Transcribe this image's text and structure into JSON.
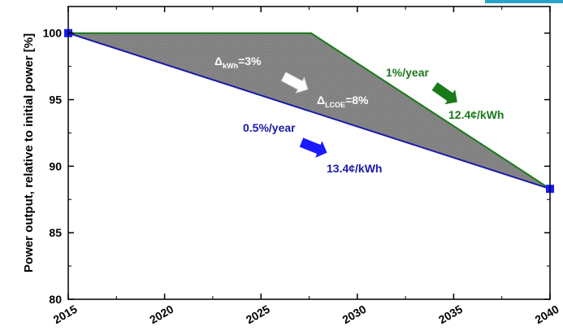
{
  "chart_data": {
    "type": "area",
    "xlabel": "",
    "ylabel": "Power output, relative to initial power [%]",
    "xlim": [
      2015,
      2040
    ],
    "ylim": [
      80,
      102
    ],
    "xticks": [
      2015,
      2020,
      2025,
      2030,
      2035,
      2040
    ],
    "yticks": [
      80,
      85,
      90,
      95,
      100
    ],
    "grid": false,
    "series": [
      {
        "name": "1%/year",
        "color": "#1a7a1a",
        "x": [
          2015,
          2027.6,
          2040
        ],
        "y": [
          100,
          100,
          88.3
        ]
      },
      {
        "name": "0.5%/year",
        "color": "#1a1aaa",
        "x": [
          2015,
          2040
        ],
        "y": [
          100,
          88.3
        ],
        "markers": "square"
      }
    ],
    "fill_between": {
      "color": "#808080",
      "pattern": "hatched"
    },
    "annotations": [
      {
        "id": "dkwh",
        "base": "Δ",
        "sub": "kWh",
        "rest": "=3%",
        "color": "#ffffff"
      },
      {
        "id": "dlcoe",
        "base": "Δ",
        "sub": "LCOE",
        "rest": "=8%",
        "color": "#ffffff"
      },
      {
        "id": "green_rate",
        "text": "1%/year",
        "color": "#1a7a1a"
      },
      {
        "id": "green_cost",
        "text": "12.4¢/kWh",
        "color": "#1a7a1a"
      },
      {
        "id": "blue_rate",
        "text": "0.5%/year",
        "color": "#1a1aaa"
      },
      {
        "id": "blue_cost",
        "text": "13.4¢/kWh",
        "color": "#1a1aaa"
      }
    ]
  },
  "colors": {
    "accent_corner": "#2aa3c8"
  }
}
